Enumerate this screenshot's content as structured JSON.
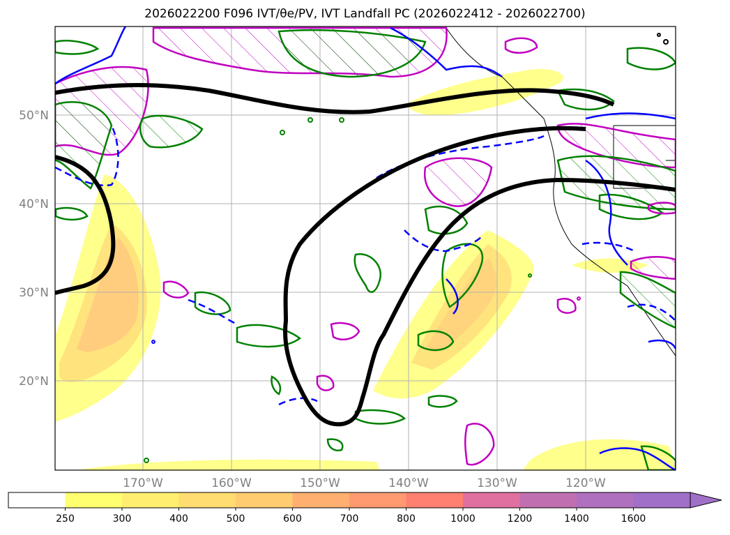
{
  "title": "2026022200 F096 IVT/θe/PV, IVT Landfall PC (2026022412 - 2026022700)",
  "map": {
    "lat_labels": [
      "50°N",
      "40°N",
      "30°N",
      "20°N"
    ],
    "lon_labels": [
      "170°W",
      "160°W",
      "150°W",
      "140°W",
      "130°W",
      "120°W"
    ],
    "colors": {
      "theta_e_pc_contour": "#000000",
      "ivt_fill_low": "#ffff80",
      "ivt_fill_mid": "#ffd070",
      "pv_contour_solid": "#0000ff",
      "pv_contour_dashed": "#0000ff",
      "green_contour": "#008000",
      "magenta_contour": "#c000c0"
    }
  },
  "colorbar": {
    "labels": [
      "250",
      "300",
      "400",
      "500",
      "600",
      "700",
      "800",
      "1000",
      "1200",
      "1400",
      "1600"
    ],
    "colors": [
      "#ffffff",
      "#ffff70",
      "#ffee70",
      "#ffdd70",
      "#ffcc70",
      "#ffb070",
      "#ff9a70",
      "#ff8070",
      "#e070a0",
      "#c070b0",
      "#b070c0",
      "#a070c8"
    ]
  }
}
